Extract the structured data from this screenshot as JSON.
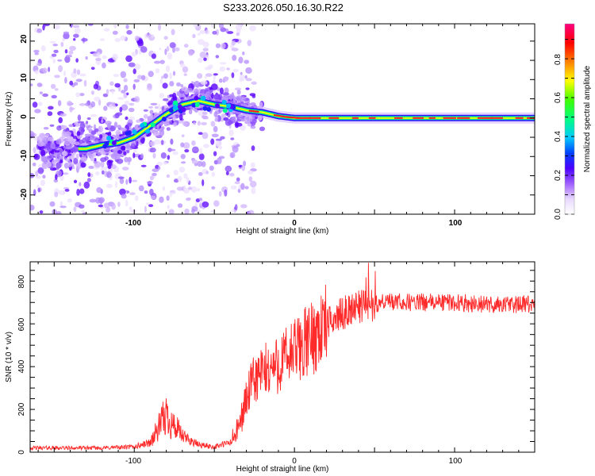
{
  "title": "S233.2026.050.16.30.R22",
  "chart_data": [
    {
      "type": "heatmap",
      "name": "spectrogram",
      "xlabel": "Height of straight line (km)",
      "ylabel": "Frequency (Hz)",
      "xlim": [
        -165,
        150
      ],
      "ylim": [
        -25,
        24.5
      ],
      "x_ticks": [
        "-100",
        "0",
        "100"
      ],
      "y_ticks": [
        "-20",
        "-10",
        "0",
        "10",
        "20"
      ],
      "ridge": {
        "x": [
          -130,
          -120,
          -110,
          -100,
          -90,
          -80,
          -70,
          -60,
          -50,
          -40,
          -30,
          -20,
          -10,
          0,
          20,
          50,
          100,
          150
        ],
        "y": [
          -8,
          -7,
          -6.5,
          -5,
          -2,
          1,
          3.5,
          4.5,
          3.5,
          3,
          2,
          1.5,
          0.5,
          0,
          0,
          0,
          0,
          0
        ]
      },
      "colorbar": {
        "label": "Normalized spectral amplitude",
        "ticks": [
          "0.0",
          "0.2",
          "0.4",
          "0.6",
          "0.8"
        ],
        "range": [
          0,
          0.98
        ]
      }
    },
    {
      "type": "line",
      "name": "snr",
      "xlabel": "Height of straight line (km)",
      "ylabel": "SNR (10 * v/v)",
      "xlim": [
        -165,
        150
      ],
      "ylim": [
        0,
        890
      ],
      "x_ticks": [
        "-100",
        "0",
        "100"
      ],
      "y_ticks": [
        "0",
        "200",
        "400",
        "600",
        "800"
      ],
      "color": "#ff2a2a",
      "trend": {
        "x": [
          -165,
          -120,
          -100,
          -90,
          -85,
          -80,
          -75,
          -70,
          -60,
          -50,
          -40,
          -35,
          -30,
          -25,
          -20,
          -15,
          -10,
          0,
          10,
          20,
          30,
          40,
          50,
          60,
          80,
          100,
          120,
          150
        ],
        "y": [
          20,
          20,
          25,
          45,
          110,
          175,
          120,
          75,
          35,
          25,
          45,
          110,
          250,
          340,
          370,
          390,
          410,
          470,
          530,
          600,
          650,
          680,
          695,
          700,
          700,
          700,
          690,
          690
        ]
      }
    }
  ]
}
